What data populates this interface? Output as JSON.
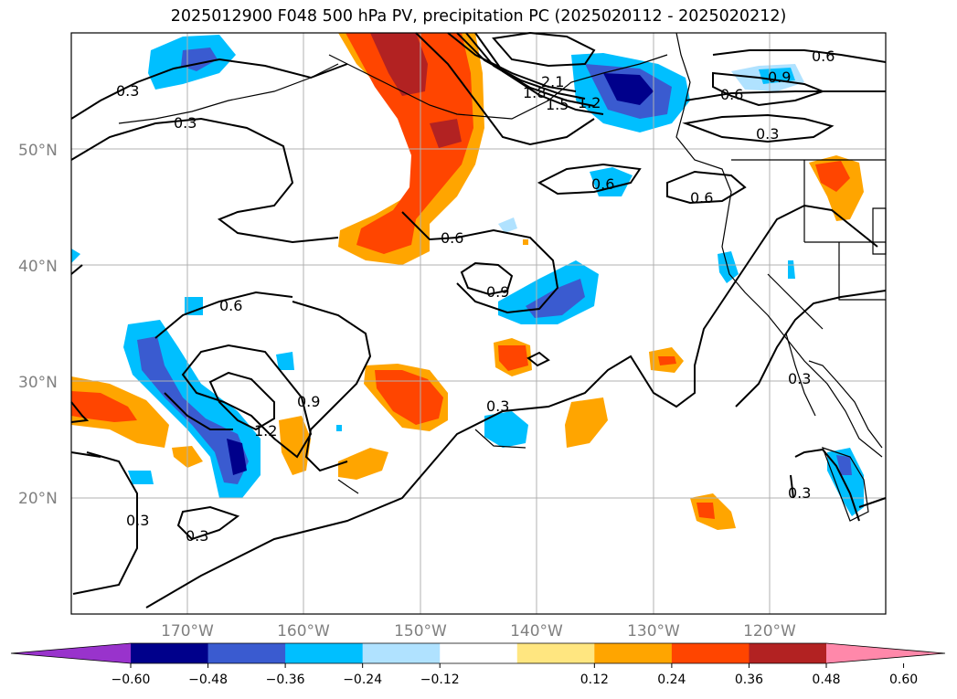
{
  "title": "2025012900 F048 500 hPa PV, precipitation PC (2025020112 - 2025020212)",
  "map": {
    "lat_ticks": [
      "50°N",
      "40°N",
      "30°N",
      "20°N"
    ],
    "lon_ticks": [
      "170°W",
      "160°W",
      "150°W",
      "140°W",
      "130°W",
      "120°W"
    ],
    "grid": true,
    "extent": {
      "lon_min": -180,
      "lon_max": -110,
      "lat_min": 10,
      "lat_max": 60
    }
  },
  "colorbar": {
    "ticks": [
      "−0.60",
      "−0.48",
      "−0.36",
      "−0.24",
      "−0.12",
      "0.12",
      "0.24",
      "0.36",
      "0.48",
      "0.60"
    ],
    "colors": [
      "#9933cc",
      "#00008b",
      "#3a5bd0",
      "#00bfff",
      "#b0e2ff",
      "#ffffff",
      "#ffe680",
      "#ffa500",
      "#ff4500",
      "#b22222",
      "#ff88aa"
    ],
    "extend": "both"
  },
  "contour_labels": [
    {
      "text": "0.3"
    },
    {
      "text": "0.3"
    },
    {
      "text": "0.6"
    },
    {
      "text": "0.6"
    },
    {
      "text": "0.9"
    },
    {
      "text": "0.6"
    },
    {
      "text": "0.6"
    },
    {
      "text": "0.3"
    },
    {
      "text": "0.6"
    },
    {
      "text": "0.9"
    },
    {
      "text": "0.6"
    },
    {
      "text": "0.9"
    },
    {
      "text": "1.2"
    },
    {
      "text": "0.3"
    },
    {
      "text": "0.3"
    },
    {
      "text": "0.3"
    },
    {
      "text": "0.3"
    },
    {
      "text": "0.3"
    },
    {
      "text": "1.8"
    },
    {
      "text": "1.5"
    },
    {
      "text": "1.2"
    },
    {
      "text": "2.1"
    }
  ],
  "colors": {
    "contour": "#000000",
    "grid": "#b0b0b0",
    "tick_text": "#808080"
  }
}
